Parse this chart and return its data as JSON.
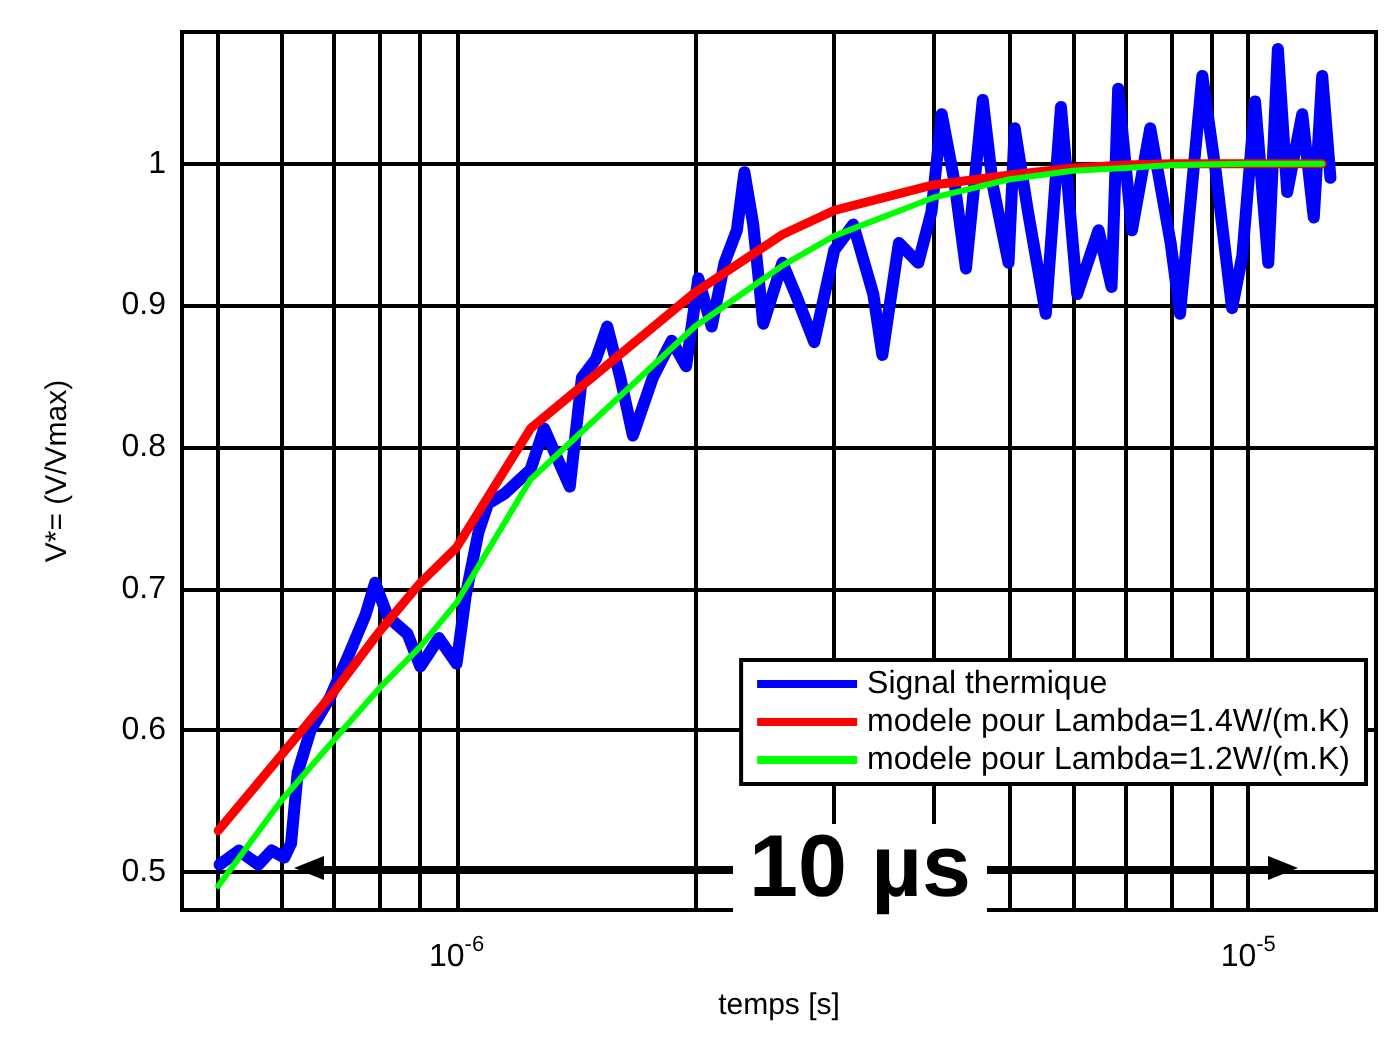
{
  "chart_data": {
    "type": "line",
    "xlabel": "temps [s]",
    "ylabel": "V*= (V/Vmax)",
    "log": "x",
    "grid": true,
    "legend": "bottom right",
    "marker": "none",
    "line_style": "solid",
    "xlim": [
      4.5e-07,
      1.45e-05
    ],
    "ylim": [
      0.473,
      1.093
    ],
    "xticks": [
      {
        "value": 5e-07,
        "label": null
      },
      {
        "value": 6e-07,
        "label": null
      },
      {
        "value": 7e-07,
        "label": null
      },
      {
        "value": 8e-07,
        "label": null
      },
      {
        "value": 9e-07,
        "label": null
      },
      {
        "value": 1e-06,
        "label": "10$^{-6}$"
      },
      {
        "value": 2e-06,
        "label": null
      },
      {
        "value": 3e-06,
        "label": null
      },
      {
        "value": 4e-06,
        "label": null
      },
      {
        "value": 5e-06,
        "label": null
      },
      {
        "value": 6e-06,
        "label": null
      },
      {
        "value": 7e-06,
        "label": null
      },
      {
        "value": 8e-06,
        "label": null
      },
      {
        "value": 9e-06,
        "label": null
      },
      {
        "value": 1e-05,
        "label": "10$^{-5}$"
      }
    ],
    "yticks": [
      0.5,
      0.6,
      0.7,
      0.8,
      0.9,
      1
    ],
    "annotations": [
      "10 µs"
    ],
    "series": [
      {
        "name": "Signal thermique",
        "color": "#0000ff",
        "x": [
          5.02e-07,
          5.31e-07,
          5.62e-07,
          5.84e-07,
          6.06e-07,
          6.18e-07,
          6.3e-07,
          6.54e-07,
          6.92e-07,
          7.32e-07,
          7.67e-07,
          7.89e-07,
          8.19e-07,
          8.67e-07,
          9e-07,
          9.5e-07,
          1e-06,
          1.027e-06,
          1.066e-06,
          1.096e-06,
          1.15e-06,
          1.24e-06,
          1.29e-06,
          1.39e-06,
          1.44e-06,
          1.5e-06,
          1.55e-06,
          1.61e-06,
          1.67e-06,
          1.77e-06,
          1.87e-06,
          1.95e-06,
          2.02e-06,
          2.1e-06,
          2.18e-06,
          2.26e-06,
          2.31e-06,
          2.37e-06,
          2.44e-06,
          2.58e-06,
          2.68e-06,
          2.83e-06,
          3e-06,
          3.17e-06,
          3.36e-06,
          3.45e-06,
          3.62e-06,
          3.83e-06,
          3.98e-06,
          4.1e-06,
          4.25e-06,
          4.4e-06,
          4.62e-06,
          4.76e-06,
          4.98e-06,
          5.07e-06,
          5.27e-06,
          5.55e-06,
          5.8e-06,
          6.08e-06,
          6.47e-06,
          6.72e-06,
          6.85e-06,
          7.13e-06,
          7.52e-06,
          7.98e-06,
          8.2e-06,
          8.75e-06,
          9.1e-06,
          9.54e-06,
          9.83e-06,
          1.02e-05,
          1.06e-05,
          1.09e-05,
          1.12e-05,
          1.17e-05,
          1.21e-05,
          1.24e-05,
          1.27e-05
        ],
        "values": [
          0.505,
          0.515,
          0.505,
          0.515,
          0.51,
          0.52,
          0.57,
          0.6,
          0.623,
          0.654,
          0.681,
          0.704,
          0.68,
          0.668,
          0.645,
          0.665,
          0.647,
          0.695,
          0.74,
          0.76,
          0.767,
          0.784,
          0.813,
          0.772,
          0.849,
          0.862,
          0.885,
          0.849,
          0.808,
          0.849,
          0.875,
          0.857,
          0.919,
          0.885,
          0.93,
          0.953,
          0.994,
          0.957,
          0.887,
          0.93,
          0.908,
          0.874,
          0.939,
          0.957,
          0.908,
          0.865,
          0.944,
          0.93,
          0.966,
          1.035,
          0.989,
          0.926,
          1.045,
          0.984,
          0.93,
          1.025,
          0.966,
          0.894,
          1.04,
          0.908,
          0.953,
          0.913,
          1.053,
          0.953,
          1.025,
          0.944,
          0.894,
          1.062,
          0.994,
          0.898,
          0.935,
          1.044,
          0.93,
          1.081,
          0.98,
          1.035,
          0.962,
          1.062,
          0.99
        ]
      },
      {
        "name": "modele pour Lambda=1.4W/(m.K)",
        "color": "#ff0000",
        "x": [
          5e-07,
          6e-07,
          7e-07,
          8e-07,
          9e-07,
          1e-06,
          1.24e-06,
          2e-06,
          2.58e-06,
          3e-06,
          4e-06,
          5e-06,
          6e-06,
          7e-06,
          8e-06,
          1e-05,
          1.24e-05
        ],
        "values": [
          0.529,
          0.582,
          0.627,
          0.67,
          0.704,
          0.729,
          0.813,
          0.909,
          0.95,
          0.967,
          0.985,
          0.992,
          0.997,
          0.999,
          1.0,
          1.0,
          1.0
        ]
      },
      {
        "name": "modele pour Lambda=1.2W/(m.K)",
        "color": "#00ff00",
        "x": [
          5e-07,
          6e-07,
          7e-07,
          8e-07,
          9e-07,
          1e-06,
          1.24e-06,
          2e-06,
          2.58e-06,
          3e-06,
          4e-06,
          5e-06,
          6e-06,
          7e-06,
          8e-06,
          1e-05,
          1.24e-05
        ],
        "values": [
          0.49,
          0.55,
          0.593,
          0.63,
          0.659,
          0.69,
          0.777,
          0.885,
          0.928,
          0.949,
          0.976,
          0.989,
          0.995,
          0.997,
          0.999,
          1.0,
          1.0
        ]
      }
    ]
  }
}
